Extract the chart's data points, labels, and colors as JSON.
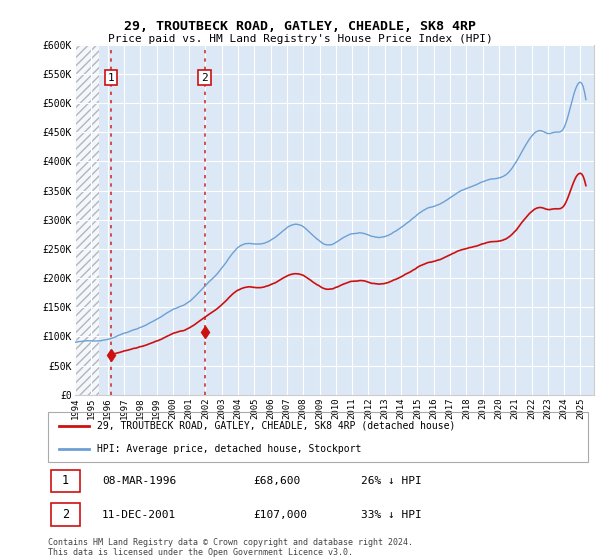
{
  "title": "29, TROUTBECK ROAD, GATLEY, CHEADLE, SK8 4RP",
  "subtitle": "Price paid vs. HM Land Registry's House Price Index (HPI)",
  "legend_label_red": "29, TROUTBECK ROAD, GATLEY, CHEADLE, SK8 4RP (detached house)",
  "legend_label_blue": "HPI: Average price, detached house, Stockport",
  "footer": "Contains HM Land Registry data © Crown copyright and database right 2024.\nThis data is licensed under the Open Government Licence v3.0.",
  "sale1_date": "08-MAR-1996",
  "sale1_price": 68600,
  "sale2_date": "11-DEC-2001",
  "sale2_price": 107000,
  "sale1_hpi_pct": "26% ↓ HPI",
  "sale2_hpi_pct": "33% ↓ HPI",
  "xmin": 1994.0,
  "xmax": 2025.83,
  "ymin": 0,
  "ymax": 600000,
  "yticks": [
    0,
    50000,
    100000,
    150000,
    200000,
    250000,
    300000,
    350000,
    400000,
    450000,
    500000,
    550000,
    600000
  ],
  "ytick_labels": [
    "£0",
    "£50K",
    "£100K",
    "£150K",
    "£200K",
    "£250K",
    "£300K",
    "£350K",
    "£400K",
    "£450K",
    "£500K",
    "£550K",
    "£600K"
  ],
  "bg_color": "#ffffff",
  "plot_bg_color": "#dce8f5",
  "grid_color": "#ffffff",
  "hpi_color": "#6ca0d4",
  "price_color": "#cc1111",
  "vline_color": "#cc3333",
  "sale1_x": 1996.19,
  "sale2_x": 2001.95,
  "hatch_end": 1995.5,
  "annotation_box_color": "#cc1111",
  "xtick_years": [
    1994,
    1995,
    1996,
    1997,
    1998,
    1999,
    2000,
    2001,
    2002,
    2003,
    2004,
    2005,
    2006,
    2007,
    2008,
    2009,
    2010,
    2011,
    2012,
    2013,
    2014,
    2015,
    2016,
    2017,
    2018,
    2019,
    2020,
    2021,
    2022,
    2023,
    2024,
    2025
  ]
}
